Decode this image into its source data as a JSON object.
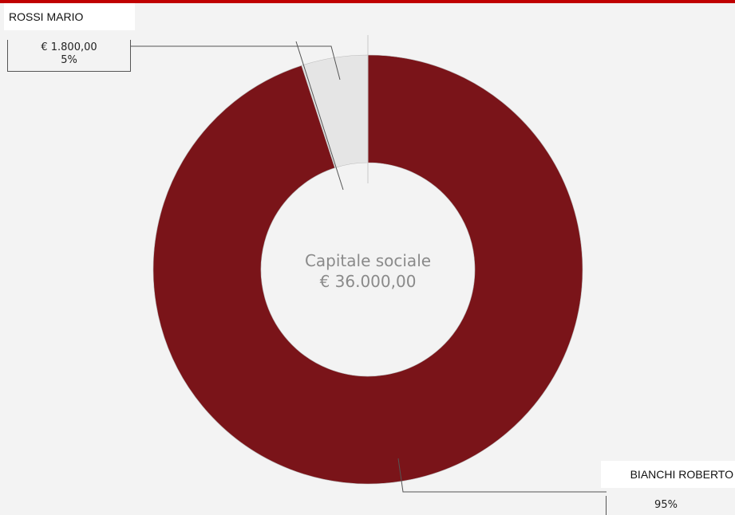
{
  "chart_data": {
    "type": "pie",
    "center_label": {
      "line1": "Capitale sociale",
      "line2": "€ 36.000,00"
    },
    "slices": [
      {
        "name": "BIANCHI ROBERTO",
        "amount_label": "",
        "percent_label": "95%",
        "percent": 95,
        "color": "#7a1419"
      },
      {
        "name": "ROSSI MARIO",
        "amount_label": "€ 1.800,00",
        "percent_label": "5%",
        "percent": 5,
        "color": "#e5e5e5"
      }
    ]
  },
  "colors": {
    "accent": "#c00000",
    "background": "#f3f3f3",
    "slice_border": "#bbbbbb",
    "leader_line": "#555555"
  }
}
